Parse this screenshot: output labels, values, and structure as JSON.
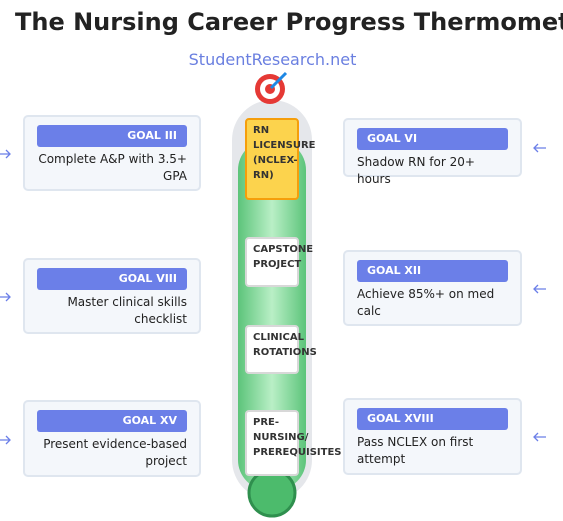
{
  "header": {
    "title": "The Nursing Career Progress Thermometer",
    "subtitle": "StudentResearch.net"
  },
  "milestones": [
    {
      "label": "RN LICENSURE (NCLEX-RN)"
    },
    {
      "label": "CAPSTONE PROJECT"
    },
    {
      "label": "CLINICAL ROTATIONS"
    },
    {
      "label": "PRE-NURSING/ PREREQUISITES"
    }
  ],
  "goals": [
    {
      "label": "GOAL III",
      "text": "Complete A&P with 3.5+ GPA"
    },
    {
      "label": "GOAL VIII",
      "text": "Master clinical skills checklist"
    },
    {
      "label": "GOAL XV",
      "text": "Present evidence-based project"
    },
    {
      "label": "GOAL VI",
      "text": "Shadow RN for 20+ hours"
    },
    {
      "label": "GOAL XII",
      "text": "Achieve 85%+ on med calc"
    },
    {
      "label": "GOAL XVIII",
      "text": "Pass NCLEX on first attempt"
    }
  ]
}
